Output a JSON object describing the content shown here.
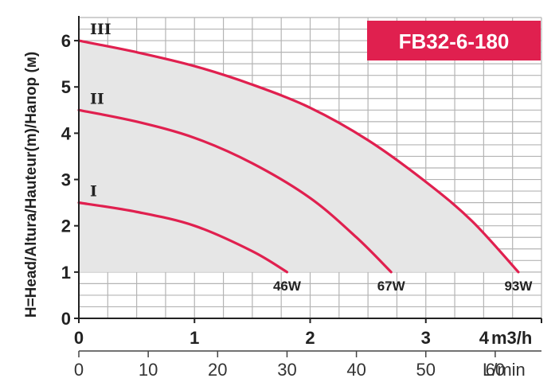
{
  "chart_data": {
    "type": "line",
    "title": "FB32-6-180",
    "ylabel": "H=Head/Altura/Hauteur(m)/Напор (м)",
    "xlabel": "m3/h",
    "xlabel2": "L/min",
    "xlim": [
      0,
      4
    ],
    "ylim": [
      0,
      6.5
    ],
    "x_ticks": [
      "0",
      "1",
      "2",
      "3",
      "4"
    ],
    "x2_ticks": [
      "0",
      "10",
      "20",
      "30",
      "40",
      "50",
      "60"
    ],
    "x2_tick_values": [
      0,
      10,
      20,
      30,
      40,
      50,
      60
    ],
    "y_ticks": [
      "0",
      "1",
      "2",
      "3",
      "4",
      "5",
      "6"
    ],
    "grid": true,
    "series": [
      {
        "name": "I",
        "power": "46W",
        "x": [
          0,
          0.5,
          1.0,
          1.5,
          1.8
        ],
        "y": [
          2.5,
          2.3,
          2.0,
          1.45,
          1.0
        ]
      },
      {
        "name": "II",
        "power": "67W",
        "x": [
          0,
          0.5,
          1.0,
          1.5,
          2.0,
          2.4,
          2.7
        ],
        "y": [
          4.5,
          4.25,
          3.9,
          3.35,
          2.6,
          1.75,
          1.0
        ]
      },
      {
        "name": "III",
        "power": "93W",
        "x": [
          0,
          0.5,
          1.0,
          1.5,
          2.0,
          2.5,
          3.0,
          3.4,
          3.8
        ],
        "y": [
          6.0,
          5.75,
          5.45,
          5.05,
          4.55,
          3.85,
          2.95,
          2.1,
          1.0
        ]
      }
    ],
    "colors": {
      "curve": "#e0204f",
      "badge": "#e0204f",
      "fill": "#e6e6e6",
      "grid": "#b4b4b4"
    }
  }
}
